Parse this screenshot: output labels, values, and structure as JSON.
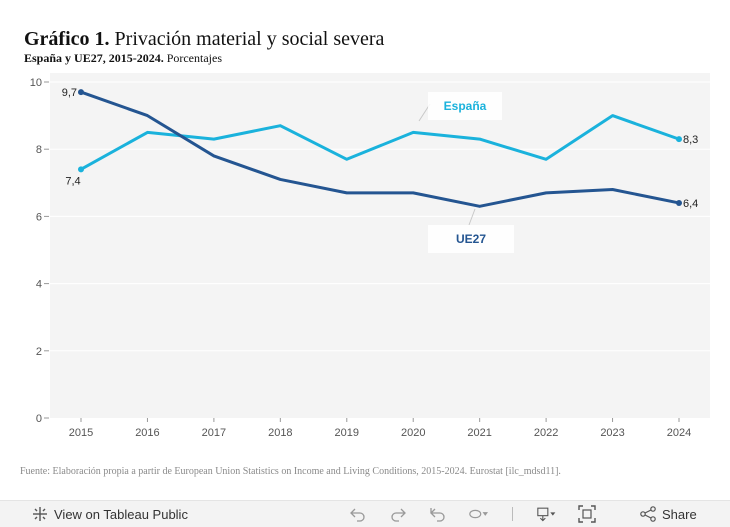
{
  "header": {
    "title_bold": "Gráfico 1.",
    "title_rest": "Privación material y social severa",
    "subtitle_bold": "España y UE27, 2015-2024.",
    "subtitle_rest": "Porcentajes"
  },
  "chart_data": {
    "type": "line",
    "title": "Privación material y social severa",
    "xlabel": "",
    "ylabel": "Porcentajes",
    "x": [
      2015,
      2016,
      2017,
      2018,
      2019,
      2020,
      2021,
      2022,
      2023,
      2024
    ],
    "ylim": [
      0,
      10
    ],
    "yticks": [
      0,
      2,
      4,
      6,
      8,
      10
    ],
    "grid": true,
    "series": [
      {
        "name": "España",
        "color": "#1ab2dc",
        "values": [
          7.4,
          8.5,
          8.3,
          8.7,
          7.7,
          8.5,
          8.3,
          7.7,
          9.0,
          8.3
        ],
        "label_first": "7,4",
        "label_last": "8,3"
      },
      {
        "name": "UE27",
        "color": "#245591",
        "values": [
          9.7,
          9.0,
          7.8,
          7.1,
          6.7,
          6.7,
          6.3,
          6.7,
          6.8,
          6.4
        ],
        "label_first": "9,7",
        "label_last": "6,4"
      }
    ]
  },
  "source": "Fuente: Elaboración propia a partir de European Union Statistics on Income and Living Conditions, 2015-2024. Eurostat [ilc_mdsd11].",
  "footer": {
    "view_label": "View on Tableau Public",
    "share_label": "Share",
    "icons": [
      "tableau-logo-icon",
      "undo-icon",
      "redo-icon",
      "revert-icon",
      "pause-icon",
      "download-icon",
      "fullscreen-icon",
      "share-icon"
    ]
  }
}
